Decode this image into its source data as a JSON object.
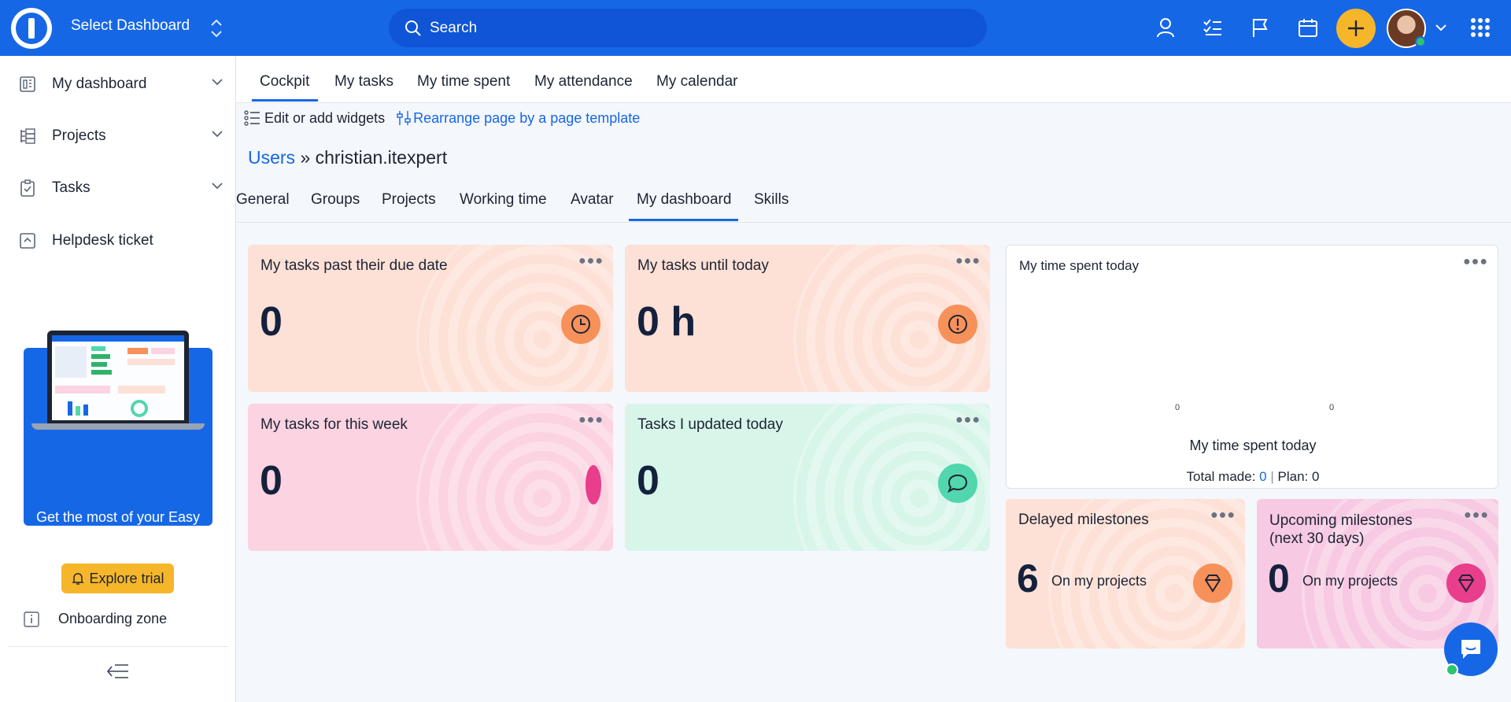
{
  "topbar": {
    "select_dashboard": "Select Dashboard",
    "search_placeholder": "Search"
  },
  "sidebar": {
    "items": [
      {
        "label": "My dashboard",
        "icon": "dashboard-icon"
      },
      {
        "label": "Projects",
        "icon": "projects-icon"
      },
      {
        "label": "Tasks",
        "icon": "tasks-icon"
      },
      {
        "label": "Helpdesk ticket",
        "icon": "helpdesk-icon"
      }
    ],
    "promo_text": "Get the most of your Easy Project!",
    "trial_button": "Explore trial",
    "onboarding": "Onboarding zone"
  },
  "top_tabs": [
    "Cockpit",
    "My tasks",
    "My time spent",
    "My attendance",
    "My calendar"
  ],
  "tools": {
    "edit_widgets": "Edit or add widgets",
    "rearrange": "Rearrange page by a page template"
  },
  "breadcrumb": {
    "link": "Users",
    "separator": "»",
    "current": "christian.itexpert"
  },
  "sub_tabs": [
    "General",
    "Groups",
    "Projects",
    "Working time",
    "Avatar",
    "My dashboard",
    "Skills"
  ],
  "cards": {
    "past_due": {
      "title": "My tasks past their due date",
      "value": "0",
      "icon": "clock-icon"
    },
    "until_today": {
      "title": "My tasks until today",
      "value": "0 h",
      "icon": "alert-icon"
    },
    "this_week": {
      "title": "My tasks for this week",
      "value": "0"
    },
    "updated_today": {
      "title": "Tasks I updated today",
      "value": "0",
      "icon": "comment-icon"
    },
    "delayed": {
      "title": "Delayed milestones",
      "value": "6",
      "sub": "On my projects",
      "icon": "diamond-icon"
    },
    "upcoming": {
      "title": "Upcoming milestones (next 30 days)",
      "value": "0",
      "sub": "On my projects",
      "icon": "diamond-icon"
    }
  },
  "time_card": {
    "title": "My time spent today",
    "zero_left": "0",
    "zero_right": "0",
    "caption": "My time spent today",
    "total_label": "Total made:",
    "total_value": "0",
    "plan_label": "Plan: 0"
  },
  "colors": {
    "brand": "#1667e6",
    "accent_yellow": "#f6b62a",
    "peach": "#fde0d6",
    "pink": "#fcd3e1",
    "mint": "#d8f5ea",
    "orange_icon": "#f7915a",
    "pink_icon": "#e83e8c",
    "mint_icon": "#52d6ad"
  }
}
